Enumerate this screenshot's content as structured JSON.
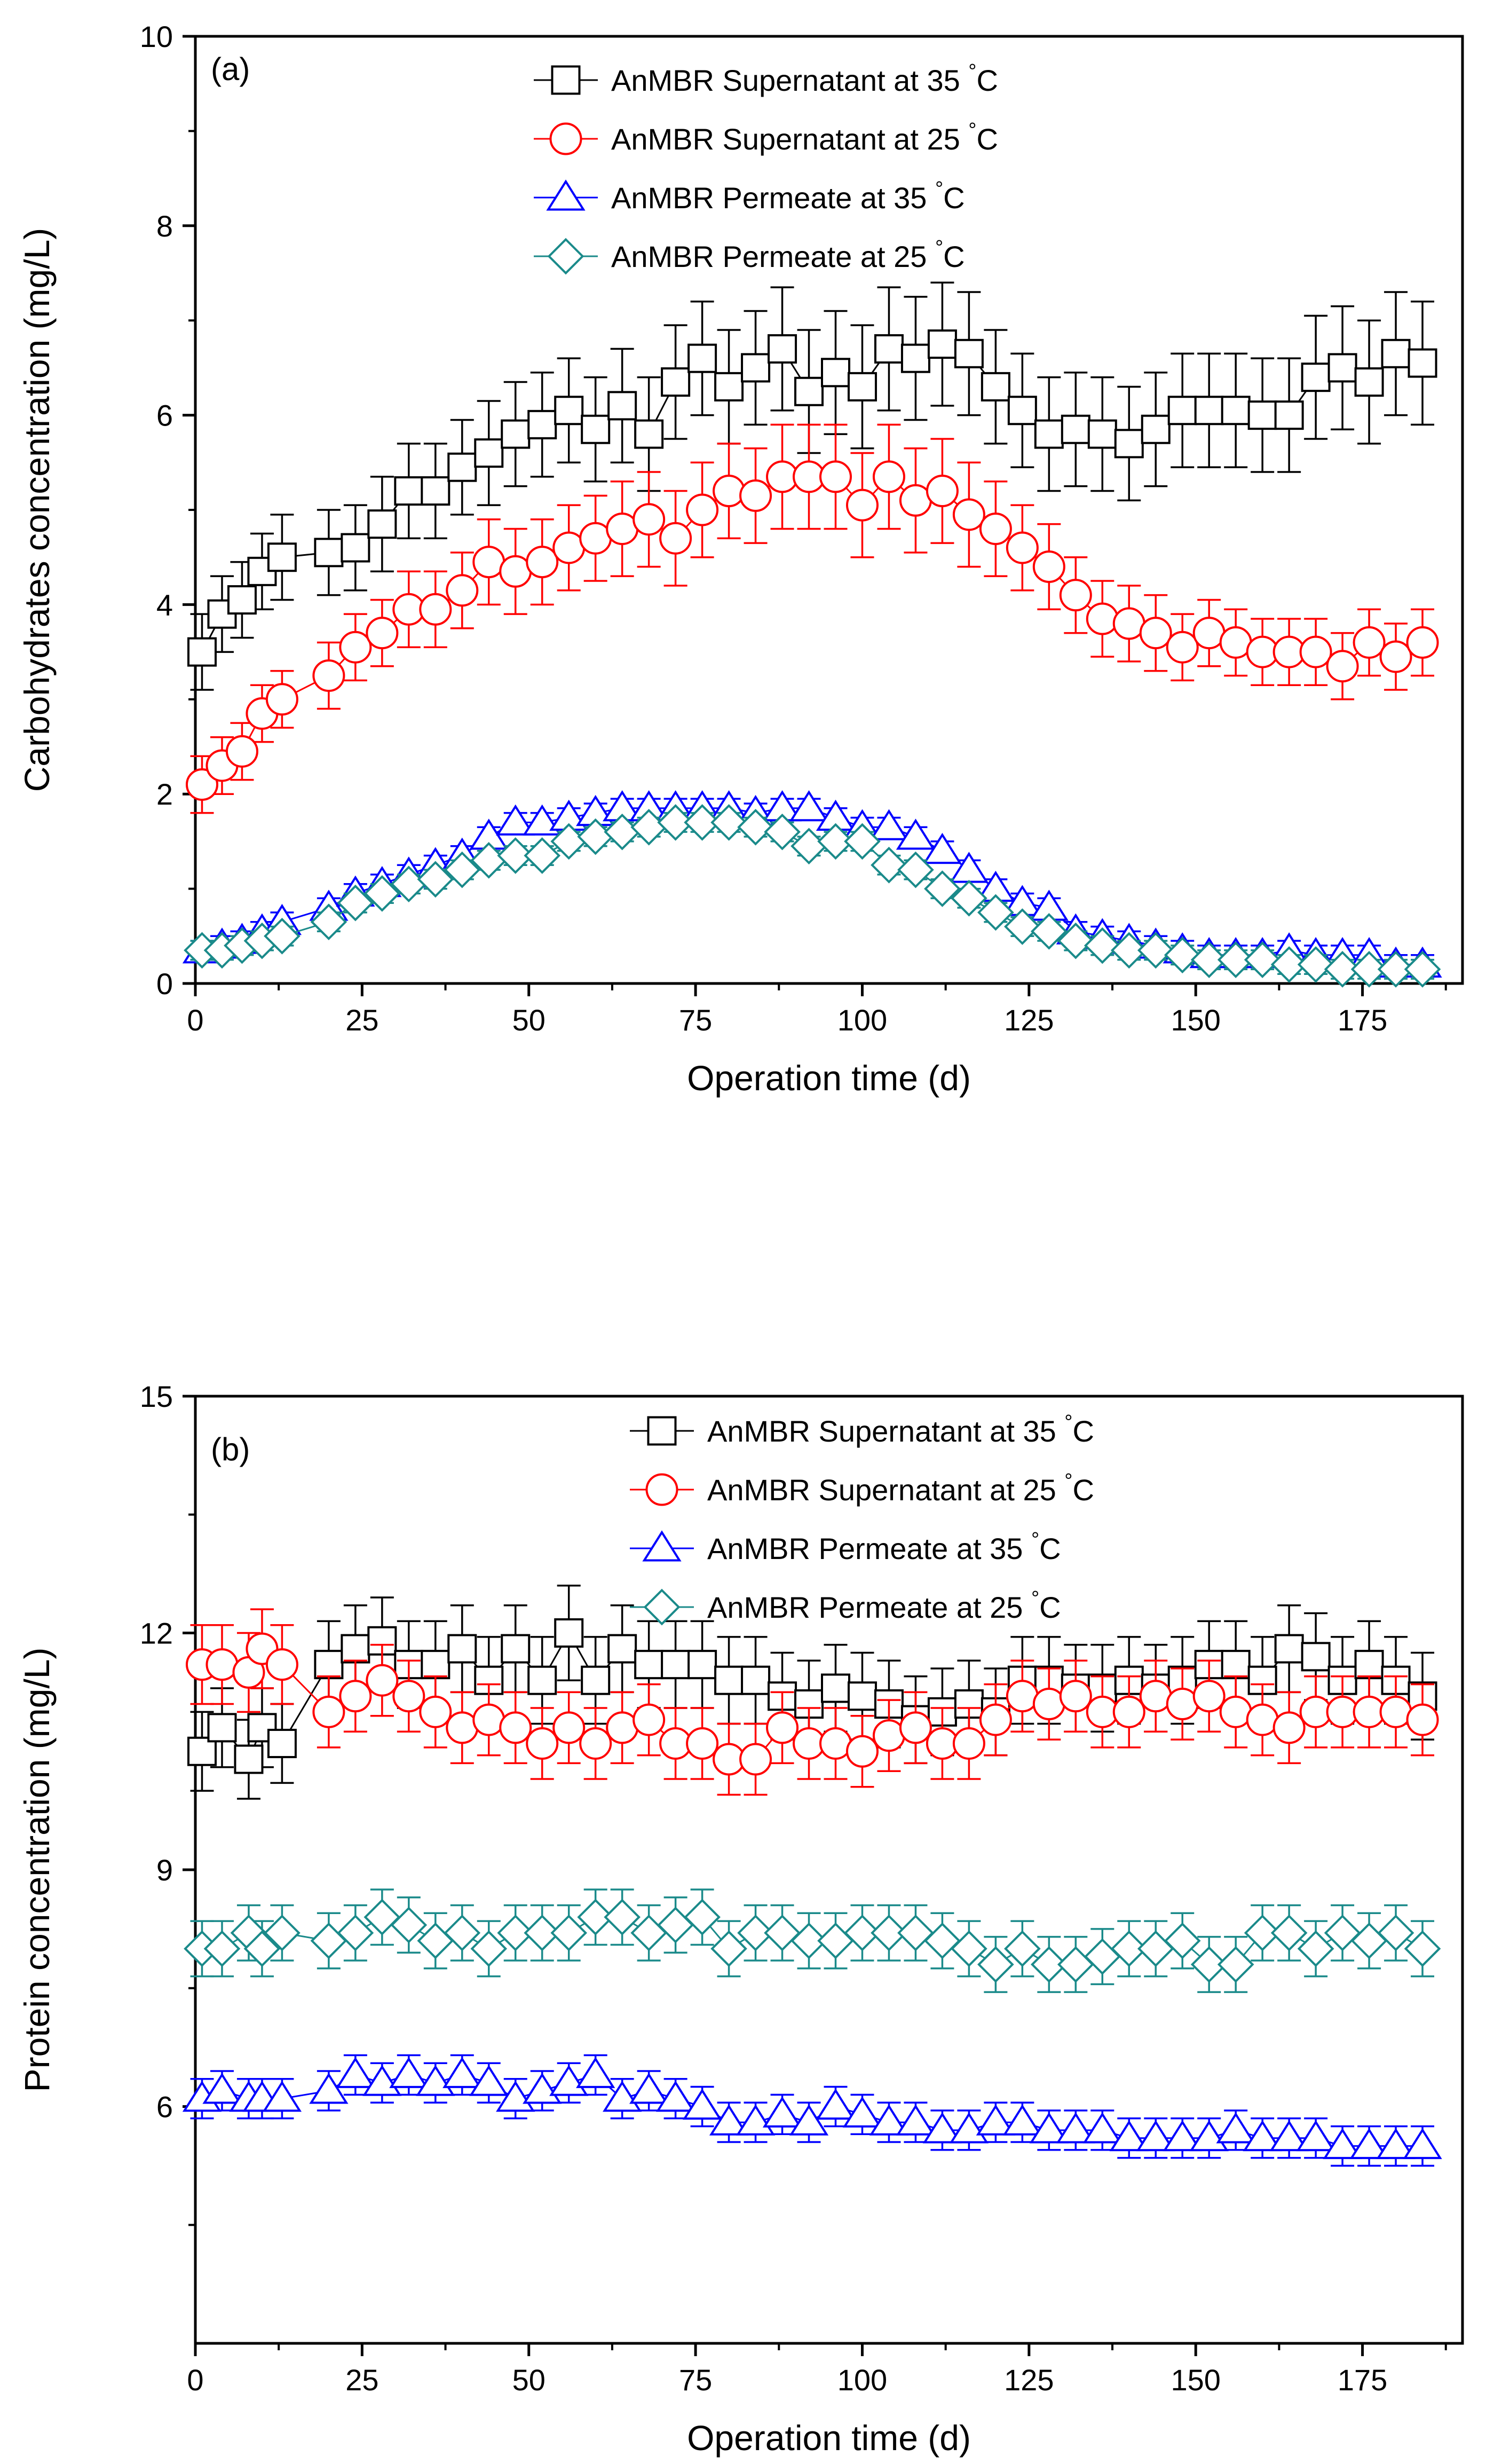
{
  "chart_data": [
    {
      "type": "scatter",
      "panel": "(a)",
      "xlabel": "Operation time (d)",
      "ylabel": "Carbohydrates concentration (mg/L)",
      "xlim": [
        0,
        190
      ],
      "ylim": [
        0,
        10
      ],
      "xticks": [
        0,
        25,
        50,
        75,
        100,
        125,
        150,
        175
      ],
      "yticks": [
        0,
        2,
        4,
        6,
        8,
        10
      ],
      "xtick_labels": [
        "0",
        "25",
        "50",
        "75",
        "100",
        "125",
        "150",
        "175"
      ],
      "ytick_labels": [
        "0",
        "2",
        "4",
        "6",
        "8",
        "10"
      ],
      "legend_position": "top-center",
      "x": [
        1,
        4,
        7,
        10,
        13,
        20,
        24,
        28,
        32,
        36,
        40,
        44,
        48,
        52,
        56,
        60,
        64,
        68,
        72,
        76,
        80,
        84,
        88,
        92,
        96,
        100,
        104,
        108,
        112,
        116,
        120,
        124,
        128,
        132,
        136,
        140,
        144,
        148,
        152,
        156,
        160,
        164,
        168,
        172,
        176,
        180,
        184
      ],
      "series": [
        {
          "name": "AnMBR Supernatant at 35",
          "unit": "°C",
          "marker": "square",
          "color": "#000000",
          "values": [
            3.5,
            3.9,
            4.05,
            4.35,
            4.5,
            4.55,
            4.6,
            4.85,
            5.2,
            5.2,
            5.45,
            5.6,
            5.8,
            5.9,
            6.05,
            5.85,
            6.1,
            5.8,
            6.35,
            6.6,
            6.3,
            6.5,
            6.7,
            6.25,
            6.45,
            6.3,
            6.7,
            6.6,
            6.75,
            6.65,
            6.3,
            6.05,
            5.8,
            5.85,
            5.8,
            5.7,
            5.85,
            6.05,
            6.05,
            6.05,
            6.0,
            6.0,
            6.4,
            6.5,
            6.35,
            6.65,
            6.55
          ],
          "errors": [
            0.4,
            0.4,
            0.4,
            0.4,
            0.45,
            0.45,
            0.45,
            0.5,
            0.5,
            0.5,
            0.5,
            0.55,
            0.55,
            0.55,
            0.55,
            0.55,
            0.6,
            0.6,
            0.6,
            0.6,
            0.6,
            0.6,
            0.65,
            0.65,
            0.65,
            0.65,
            0.65,
            0.65,
            0.65,
            0.65,
            0.6,
            0.6,
            0.6,
            0.6,
            0.6,
            0.6,
            0.6,
            0.6,
            0.6,
            0.6,
            0.6,
            0.6,
            0.65,
            0.65,
            0.65,
            0.65,
            0.65
          ]
        },
        {
          "name": "AnMBR Supernatant at 25",
          "unit": "°C",
          "marker": "circle",
          "color": "#ff0000",
          "values": [
            2.1,
            2.3,
            2.45,
            2.85,
            3.0,
            3.25,
            3.55,
            3.7,
            3.95,
            3.95,
            4.15,
            4.45,
            4.35,
            4.45,
            4.6,
            4.7,
            4.8,
            4.9,
            4.7,
            5.0,
            5.2,
            5.15,
            5.35,
            5.35,
            5.35,
            5.05,
            5.35,
            5.1,
            5.2,
            4.95,
            4.8,
            4.6,
            4.4,
            4.1,
            3.85,
            3.8,
            3.7,
            3.55,
            3.7,
            3.6,
            3.5,
            3.5,
            3.5,
            3.35,
            3.6,
            3.45,
            3.6
          ],
          "errors": [
            0.3,
            0.3,
            0.3,
            0.3,
            0.3,
            0.35,
            0.35,
            0.35,
            0.4,
            0.4,
            0.4,
            0.45,
            0.45,
            0.45,
            0.45,
            0.45,
            0.5,
            0.5,
            0.5,
            0.5,
            0.5,
            0.5,
            0.55,
            0.55,
            0.55,
            0.55,
            0.55,
            0.55,
            0.55,
            0.55,
            0.5,
            0.45,
            0.45,
            0.4,
            0.4,
            0.4,
            0.4,
            0.35,
            0.35,
            0.35,
            0.35,
            0.35,
            0.35,
            0.35,
            0.35,
            0.35,
            0.35
          ]
        },
        {
          "name": "AnMBR Permeate at 35",
          "unit": "°C",
          "marker": "triangle",
          "color": "#0000ff",
          "values": [
            0.35,
            0.4,
            0.45,
            0.55,
            0.65,
            0.8,
            0.95,
            1.05,
            1.15,
            1.25,
            1.35,
            1.55,
            1.7,
            1.7,
            1.75,
            1.8,
            1.85,
            1.85,
            1.85,
            1.85,
            1.85,
            1.8,
            1.85,
            1.85,
            1.75,
            1.65,
            1.65,
            1.55,
            1.4,
            1.2,
            1.0,
            0.85,
            0.8,
            0.55,
            0.5,
            0.45,
            0.4,
            0.35,
            0.3,
            0.3,
            0.3,
            0.35,
            0.3,
            0.3,
            0.3,
            0.2,
            0.2
          ],
          "errors": [
            0.1,
            0.1,
            0.1,
            0.1,
            0.1,
            0.1,
            0.1,
            0.1,
            0.1,
            0.1,
            0.1,
            0.1,
            0.1,
            0.1,
            0.1,
            0.1,
            0.1,
            0.1,
            0.1,
            0.1,
            0.1,
            0.1,
            0.1,
            0.1,
            0.1,
            0.1,
            0.1,
            0.1,
            0.1,
            0.1,
            0.1,
            0.1,
            0.1,
            0.1,
            0.1,
            0.1,
            0.1,
            0.1,
            0.1,
            0.1,
            0.1,
            0.1,
            0.1,
            0.1,
            0.1,
            0.1,
            0.1
          ]
        },
        {
          "name": "AnMBR Permeate at 25",
          "unit": "°C",
          "marker": "diamond",
          "color": "#1a8a8a",
          "values": [
            0.35,
            0.35,
            0.4,
            0.45,
            0.5,
            0.65,
            0.85,
            0.95,
            1.05,
            1.1,
            1.2,
            1.3,
            1.35,
            1.35,
            1.5,
            1.55,
            1.6,
            1.65,
            1.7,
            1.7,
            1.7,
            1.65,
            1.6,
            1.45,
            1.5,
            1.5,
            1.25,
            1.2,
            1.0,
            0.9,
            0.75,
            0.6,
            0.55,
            0.45,
            0.4,
            0.35,
            0.35,
            0.3,
            0.25,
            0.25,
            0.25,
            0.2,
            0.2,
            0.15,
            0.15,
            0.15,
            0.15
          ],
          "errors": [
            0.1,
            0.1,
            0.1,
            0.1,
            0.1,
            0.1,
            0.1,
            0.1,
            0.1,
            0.1,
            0.1,
            0.1,
            0.1,
            0.1,
            0.1,
            0.1,
            0.1,
            0.1,
            0.1,
            0.1,
            0.1,
            0.1,
            0.1,
            0.1,
            0.1,
            0.1,
            0.1,
            0.1,
            0.1,
            0.1,
            0.1,
            0.1,
            0.1,
            0.1,
            0.1,
            0.1,
            0.1,
            0.1,
            0.1,
            0.1,
            0.1,
            0.1,
            0.1,
            0.1,
            0.1,
            0.1,
            0.1
          ]
        }
      ]
    },
    {
      "type": "scatter",
      "panel": "(b)",
      "xlabel": "Operation time (d)",
      "ylabel": "Protein concentration (mg/L)",
      "xlim": [
        0,
        190
      ],
      "ylim": [
        3,
        15
      ],
      "xticks": [
        0,
        25,
        50,
        75,
        100,
        125,
        150,
        175
      ],
      "yticks": [
        6,
        9,
        12,
        15
      ],
      "xtick_labels": [
        "0",
        "25",
        "50",
        "75",
        "100",
        "125",
        "150",
        "175"
      ],
      "ytick_labels": [
        "6",
        "9",
        "12",
        "15"
      ],
      "legend_position": "top-center",
      "x": [
        1,
        4,
        8,
        10,
        13,
        20,
        24,
        28,
        32,
        36,
        40,
        44,
        48,
        52,
        56,
        60,
        64,
        68,
        72,
        76,
        80,
        84,
        88,
        92,
        96,
        100,
        104,
        108,
        112,
        116,
        120,
        124,
        128,
        132,
        136,
        140,
        144,
        148,
        152,
        156,
        160,
        164,
        168,
        172,
        176,
        180,
        184
      ],
      "series": [
        {
          "name": "AnMBR Supernatant at 35",
          "unit": "°C",
          "marker": "square",
          "color": "#000000",
          "values": [
            10.5,
            10.8,
            10.4,
            10.8,
            10.6,
            11.6,
            11.8,
            11.9,
            11.6,
            11.6,
            11.8,
            11.4,
            11.8,
            11.4,
            12.0,
            11.4,
            11.8,
            11.6,
            11.6,
            11.6,
            11.4,
            11.4,
            11.2,
            11.1,
            11.3,
            11.2,
            11.1,
            10.9,
            11.0,
            11.1,
            11.0,
            11.4,
            11.4,
            11.3,
            11.3,
            11.4,
            11.3,
            11.4,
            11.6,
            11.6,
            11.4,
            11.8,
            11.7,
            11.4,
            11.6,
            11.4,
            11.2
          ],
          "errors": [
            0.5,
            0.5,
            0.5,
            0.5,
            0.5,
            0.55,
            0.55,
            0.55,
            0.55,
            0.55,
            0.55,
            0.55,
            0.55,
            0.55,
            0.6,
            0.55,
            0.55,
            0.55,
            0.55,
            0.55,
            0.55,
            0.55,
            0.55,
            0.55,
            0.55,
            0.55,
            0.55,
            0.55,
            0.55,
            0.55,
            0.55,
            0.55,
            0.55,
            0.55,
            0.55,
            0.55,
            0.55,
            0.55,
            0.55,
            0.55,
            0.55,
            0.55,
            0.55,
            0.55,
            0.55,
            0.55,
            0.55
          ]
        },
        {
          "name": "AnMBR Supernatant at 25",
          "unit": "°C",
          "marker": "circle",
          "color": "#ff0000",
          "values": [
            11.6,
            11.6,
            11.5,
            11.8,
            11.6,
            11.0,
            11.2,
            11.4,
            11.2,
            11.0,
            10.8,
            10.9,
            10.8,
            10.6,
            10.8,
            10.6,
            10.8,
            10.9,
            10.6,
            10.6,
            10.4,
            10.4,
            10.8,
            10.6,
            10.6,
            10.5,
            10.7,
            10.8,
            10.6,
            10.6,
            10.9,
            11.2,
            11.1,
            11.2,
            11.0,
            11.0,
            11.2,
            11.1,
            11.2,
            11.0,
            10.9,
            10.8,
            11.0,
            11.0,
            11.0,
            11.0,
            10.9
          ],
          "errors": [
            0.5,
            0.5,
            0.5,
            0.5,
            0.5,
            0.45,
            0.45,
            0.45,
            0.45,
            0.45,
            0.45,
            0.45,
            0.45,
            0.45,
            0.45,
            0.45,
            0.45,
            0.45,
            0.45,
            0.45,
            0.45,
            0.45,
            0.45,
            0.45,
            0.45,
            0.45,
            0.45,
            0.45,
            0.45,
            0.45,
            0.45,
            0.45,
            0.45,
            0.45,
            0.45,
            0.45,
            0.45,
            0.45,
            0.45,
            0.45,
            0.45,
            0.45,
            0.45,
            0.45,
            0.45,
            0.45,
            0.45
          ]
        },
        {
          "name": "AnMBR Permeate at 35",
          "unit": "°C",
          "marker": "triangle",
          "color": "#0000ff",
          "values": [
            6.1,
            6.2,
            6.1,
            6.1,
            6.1,
            6.2,
            6.4,
            6.3,
            6.4,
            6.3,
            6.4,
            6.3,
            6.1,
            6.2,
            6.3,
            6.4,
            6.1,
            6.2,
            6.1,
            6.0,
            5.8,
            5.8,
            5.9,
            5.8,
            6.0,
            5.9,
            5.8,
            5.8,
            5.7,
            5.7,
            5.8,
            5.8,
            5.7,
            5.7,
            5.7,
            5.6,
            5.6,
            5.6,
            5.6,
            5.7,
            5.6,
            5.6,
            5.6,
            5.5,
            5.5,
            5.5,
            5.5
          ],
          "errors": [
            0.25,
            0.25,
            0.25,
            0.25,
            0.25,
            0.25,
            0.25,
            0.25,
            0.25,
            0.25,
            0.25,
            0.25,
            0.25,
            0.25,
            0.25,
            0.25,
            0.25,
            0.25,
            0.25,
            0.25,
            0.25,
            0.25,
            0.25,
            0.25,
            0.25,
            0.25,
            0.25,
            0.25,
            0.25,
            0.25,
            0.25,
            0.25,
            0.25,
            0.25,
            0.25,
            0.25,
            0.25,
            0.25,
            0.25,
            0.25,
            0.25,
            0.25,
            0.25,
            0.25,
            0.25,
            0.25,
            0.25
          ]
        },
        {
          "name": "AnMBR Permeate at 25",
          "unit": "°C",
          "marker": "diamond",
          "color": "#1a8a8a",
          "values": [
            8.0,
            8.0,
            8.2,
            8.0,
            8.2,
            8.1,
            8.2,
            8.4,
            8.3,
            8.1,
            8.2,
            8.0,
            8.2,
            8.2,
            8.2,
            8.4,
            8.4,
            8.2,
            8.3,
            8.4,
            8.0,
            8.2,
            8.2,
            8.1,
            8.1,
            8.2,
            8.2,
            8.2,
            8.1,
            8.0,
            7.8,
            8.0,
            7.8,
            7.8,
            7.9,
            8.0,
            8.0,
            8.1,
            7.8,
            7.8,
            8.2,
            8.2,
            8.0,
            8.2,
            8.1,
            8.2,
            8.0
          ],
          "errors": [
            0.35,
            0.35,
            0.35,
            0.35,
            0.35,
            0.35,
            0.35,
            0.35,
            0.35,
            0.35,
            0.35,
            0.35,
            0.35,
            0.35,
            0.35,
            0.35,
            0.35,
            0.35,
            0.35,
            0.35,
            0.35,
            0.35,
            0.35,
            0.35,
            0.35,
            0.35,
            0.35,
            0.35,
            0.35,
            0.35,
            0.35,
            0.35,
            0.35,
            0.35,
            0.35,
            0.35,
            0.35,
            0.35,
            0.35,
            0.35,
            0.35,
            0.35,
            0.35,
            0.35,
            0.35,
            0.35,
            0.35
          ]
        }
      ]
    }
  ]
}
